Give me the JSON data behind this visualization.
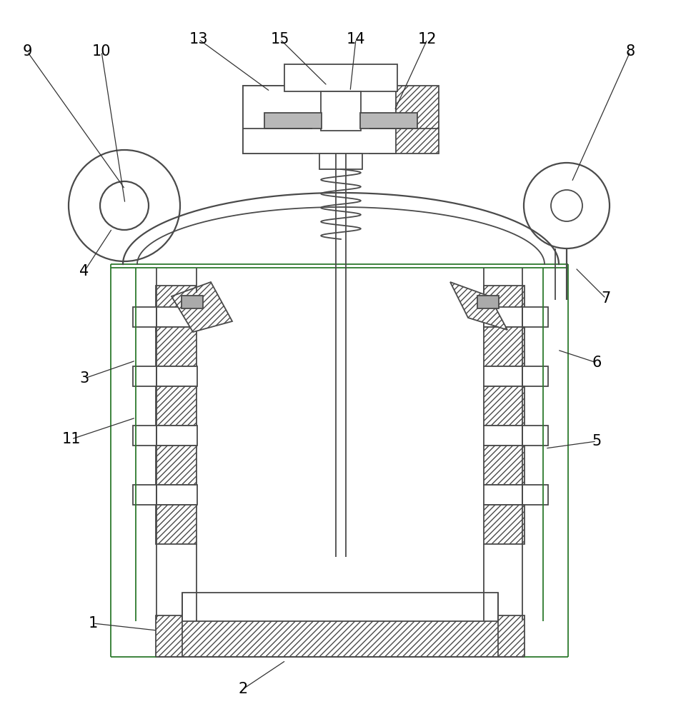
{
  "bg_color": "#ffffff",
  "lc": "#4a4a4a",
  "lc_green": "#2d7a2d",
  "lw": 1.3,
  "lw2": 1.6,
  "label_fs": 15
}
